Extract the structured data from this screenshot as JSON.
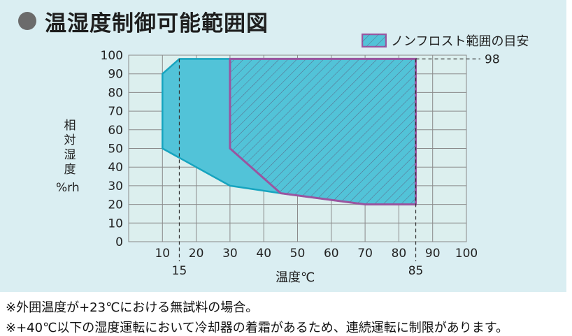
{
  "title": "温湿度制御可能範囲図",
  "legend": {
    "label": "ノンフロスト範囲の目安"
  },
  "notes": [
    "※外囲温度が+23℃における無試料の場合。",
    "※+40℃以下の湿度運転において冷却器の着霜があるため、連続運転に制限があります。"
  ],
  "colors": {
    "panel_bg": "#daeef2",
    "plot_bg": "#dcefee",
    "grid": "#8a8a8a",
    "area_fill": "#52c3d8",
    "area_stroke": "#16a4bf",
    "hatch": "#5a6a8a",
    "nonfrost_stroke": "#9a55a0"
  },
  "chart_data": {
    "type": "area",
    "xlabel": "温度℃",
    "ylabel": "相対湿度",
    "yunit": "%rh",
    "xlim": [
      0,
      100
    ],
    "ylim": [
      0,
      100
    ],
    "xticks": [
      "10",
      "20",
      "30",
      "40",
      "50",
      "60",
      "70",
      "80",
      "90",
      "100"
    ],
    "yticks": [
      "0",
      "10",
      "20",
      "30",
      "40",
      "50",
      "60",
      "70",
      "80",
      "90",
      "100"
    ],
    "grid": true,
    "legend_position": "top-right",
    "series": [
      {
        "kind": "controllable_range",
        "points": [
          [
            10,
            50
          ],
          [
            10,
            90
          ],
          [
            15,
            98
          ],
          [
            85,
            98
          ],
          [
            85,
            20
          ],
          [
            70,
            20
          ],
          [
            45,
            26
          ],
          [
            30,
            30
          ]
        ]
      },
      {
        "name": "ノンフロスト範囲の目安",
        "kind": "hatched",
        "points": [
          [
            30,
            50
          ],
          [
            30,
            98
          ],
          [
            85,
            98
          ],
          [
            85,
            20
          ],
          [
            70,
            20
          ],
          [
            45,
            26
          ]
        ]
      }
    ],
    "reference_lines": [
      {
        "axis": "x",
        "value": 15,
        "label": "15"
      },
      {
        "axis": "x",
        "value": 85,
        "label": "85"
      },
      {
        "axis": "y",
        "value": 98,
        "label": "98"
      }
    ]
  }
}
